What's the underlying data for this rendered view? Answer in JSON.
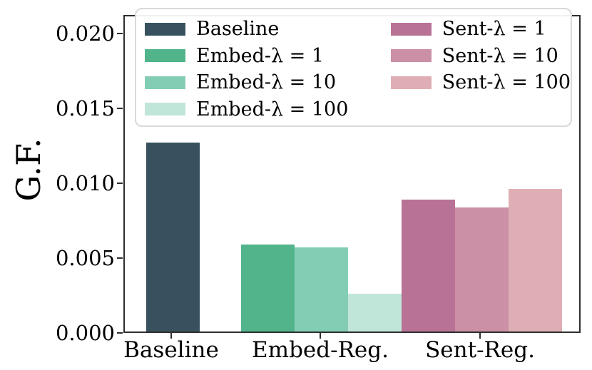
{
  "figure": {
    "background": "#ffffff",
    "spine_color": "#2e2e2e"
  },
  "chart_data": {
    "type": "bar",
    "title": "",
    "xlabel": "",
    "ylabel": "G.F.",
    "categories": [
      "Baseline",
      "Embed-Reg.",
      "Sent-Reg."
    ],
    "ytick_labels": [
      "0.000",
      "0.005",
      "0.010",
      "0.015",
      "0.020"
    ],
    "yticks": [
      0.0,
      0.005,
      0.01,
      0.015,
      0.02
    ],
    "ylim": [
      0.0,
      0.0212
    ],
    "grid": false,
    "legend_position": "upper center, two columns",
    "series": [
      {
        "name": "Baseline",
        "category": "Baseline",
        "value": 0.0126,
        "color": "#37525e"
      },
      {
        "name": "Embed-λ = 1",
        "category": "Embed-Reg.",
        "value": 0.0058,
        "color": "#51b48b"
      },
      {
        "name": "Embed-λ = 10",
        "category": "Embed-Reg.",
        "value": 0.0056,
        "color": "#84cdb5"
      },
      {
        "name": "Embed-λ = 100",
        "category": "Embed-Reg.",
        "value": 0.0025,
        "color": "#c0e5d9"
      },
      {
        "name": "Sent-λ = 1",
        "category": "Sent-Reg.",
        "value": 0.0088,
        "color": "#b87295"
      },
      {
        "name": "Sent-λ = 10",
        "category": "Sent-Reg.",
        "value": 0.0083,
        "color": "#cb90a5"
      },
      {
        "name": "Sent-λ = 100",
        "category": "Sent-Reg.",
        "value": 0.0095,
        "color": "#dfaeb5"
      }
    ],
    "legend_columns": [
      [
        "Baseline",
        "Embed-λ = 1",
        "Embed-λ = 10",
        "Embed-λ = 100"
      ],
      [
        "Sent-λ = 1",
        "Sent-λ = 10",
        "Sent-λ = 100"
      ]
    ]
  }
}
